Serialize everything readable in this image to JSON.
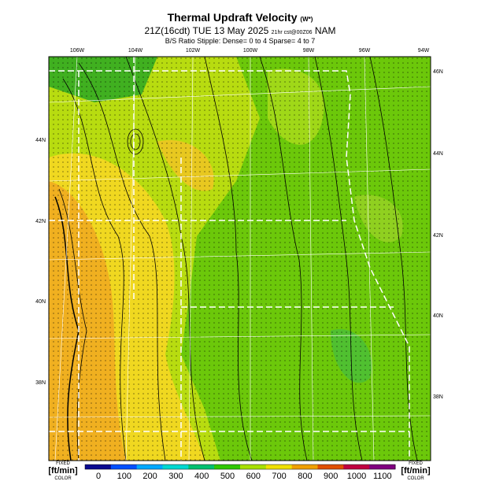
{
  "header": {
    "title": "Thermal Updraft Velocity",
    "title_unit": "(W*)",
    "subtitle": "21Z(16cdt) TUE 13 May 2025",
    "run": "21hr cst@00Z06",
    "model": "NAM",
    "note": "B/S Ratio Stipple:  Dense= 0 to 4  Sparse= 4 to 7"
  },
  "map": {
    "top_labels": [
      "106W",
      "104W",
      "102W",
      "100W",
      "98W",
      "96W",
      "94W"
    ],
    "right_labels": [
      "46N",
      "44N",
      "42N",
      "40N",
      "38N"
    ],
    "left_labels": [
      "44N",
      "42N",
      "40N",
      "38N"
    ]
  },
  "colorbar": {
    "left": {
      "line1": "FIXED",
      "line2": "[ft/min]",
      "line3": "COLOR"
    },
    "right": {
      "line1": "FIXED",
      "line2": "[ft/min]",
      "line3": "COLOR"
    },
    "labels": [
      0,
      100,
      200,
      300,
      400,
      500,
      600,
      700,
      800,
      900,
      1000,
      1100
    ],
    "colors": [
      "#0a0a90",
      "#0050ff",
      "#00a8ff",
      "#00d8d0",
      "#00c070",
      "#30c800",
      "#a8e000",
      "#f0e000",
      "#f0a000",
      "#e05000",
      "#c00040",
      "#800080"
    ]
  }
}
